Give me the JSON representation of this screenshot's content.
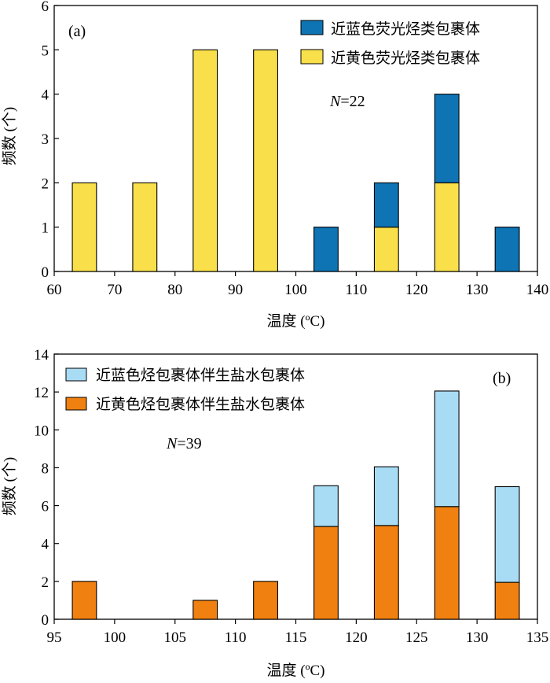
{
  "chart_data": [
    {
      "type": "bar",
      "stacked": true,
      "panel_label": "(a)",
      "n_label": {
        "italic": "N",
        "rest": "=22"
      },
      "xlabel": "温度 (ºC)",
      "ylabel": "频数 (个)",
      "xlim": [
        60,
        140
      ],
      "ylim": [
        0,
        6
      ],
      "x_ticks": [
        "60",
        "70",
        "80",
        "90",
        "100",
        "110",
        "120",
        "130",
        "140"
      ],
      "y_ticks": [
        "0",
        "1",
        "2",
        "3",
        "4",
        "5",
        "6"
      ],
      "bin_width": 5,
      "bin_centers": [
        65,
        75,
        85,
        95,
        105,
        115,
        125,
        135
      ],
      "legend_position": "top-right",
      "series": [
        {
          "name": "近黄色荧光烃类包裹体",
          "color": "#f9e04b",
          "values": [
            2,
            2,
            5,
            5,
            0,
            1,
            2,
            0
          ]
        },
        {
          "name": "近蓝色荧光烃类包裹体",
          "color": "#0e74b4",
          "values": [
            0,
            0,
            0,
            0,
            1,
            1,
            2,
            1
          ]
        }
      ],
      "legend_order": [
        1,
        0
      ]
    },
    {
      "type": "bar",
      "stacked": true,
      "panel_label": "(b)",
      "n_label": {
        "italic": "N",
        "rest": "=39"
      },
      "xlabel": "温度 (ºC)",
      "ylabel": "频数 (个)",
      "xlim": [
        95,
        135
      ],
      "ylim": [
        0,
        14
      ],
      "x_ticks": [
        "95",
        "100",
        "105",
        "110",
        "115",
        "120",
        "125",
        "130",
        "135"
      ],
      "y_ticks": [
        "0",
        "2",
        "4",
        "6",
        "8",
        "10",
        "12",
        "14"
      ],
      "bin_width": 2.5,
      "bin_centers": [
        97.5,
        107.5,
        112.5,
        117.5,
        122.5,
        127.5,
        132.5
      ],
      "legend_position": "top-left",
      "series": [
        {
          "name": "近黄色烃包裹体伴生盐水包裹体",
          "color": "#f08010",
          "values": [
            2,
            1,
            2,
            4.9,
            4.95,
            5.95,
            1.95
          ]
        },
        {
          "name": "近蓝色烃包裹体伴生盐水包裹体",
          "color": "#a8dcf4",
          "values": [
            0,
            0,
            0,
            2.15,
            3.1,
            6.1,
            5.05
          ]
        }
      ],
      "legend_order": [
        1,
        0
      ]
    }
  ]
}
